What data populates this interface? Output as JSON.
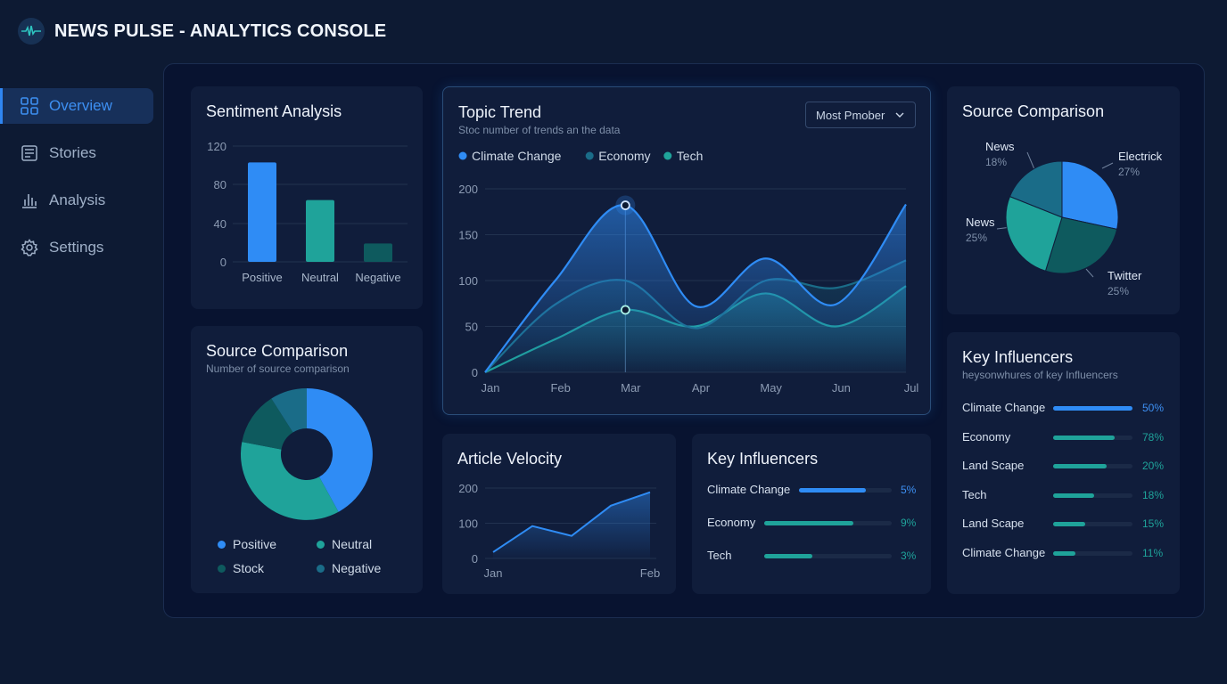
{
  "app": {
    "title": "NEWS PULSE - ANALYTICS CONSOLE",
    "logo_icon": "pulse-icon"
  },
  "nav": [
    {
      "label": "Overview",
      "icon": "grid-icon",
      "active": true
    },
    {
      "label": "Stories",
      "icon": "document-icon",
      "active": false
    },
    {
      "label": "Analysis",
      "icon": "bar-chart-icon",
      "active": false
    },
    {
      "label": "Settings",
      "icon": "gear-icon",
      "active": false
    }
  ],
  "colors": {
    "blue": "#2f8cf5",
    "teal": "#1fa39a",
    "dark_teal": "#0e5a5e",
    "slate_teal": "#1a6c88"
  },
  "sentiment": {
    "title": "Sentiment Analysis",
    "yticks": [
      "120",
      "80",
      "40",
      "0"
    ]
  },
  "source_donut": {
    "title": "Source Comparison",
    "subtitle": "Number of source comparison",
    "legend": [
      "Positive",
      "Neutral",
      "Stock",
      "Negative"
    ]
  },
  "topic": {
    "title": "Topic Trend",
    "subtitle": "Stoc number of trends an the data",
    "dropdown": "Most Pmober"
  },
  "velocity": {
    "title": "Article Velocity"
  },
  "influencers_mid": {
    "title": "Key Influencers",
    "rows": [
      {
        "label": "Climate Change",
        "value": "5%",
        "fill": 0.72,
        "color": "#2f8cf5",
        "text_color": "#3d8ff2"
      },
      {
        "label": "Economy",
        "value": "9%",
        "fill": 0.7,
        "color": "#1fa39a",
        "text_color": "#1fa39a"
      },
      {
        "label": "Tech",
        "value": "3%",
        "fill": 0.38,
        "color": "#1fa39a",
        "text_color": "#1fa39a"
      }
    ]
  },
  "source_pie": {
    "title": "Source Comparison",
    "labels": [
      {
        "name": "Electrick",
        "value": "27%"
      },
      {
        "name": "News",
        "value": "18%"
      },
      {
        "name": "News",
        "value": "25%"
      },
      {
        "name": "Twitter",
        "value": "25%"
      }
    ]
  },
  "influencers_right": {
    "title": "Key Influencers",
    "subtitle": "heysonwhures of key Influencers",
    "rows": [
      {
        "label": "Climate Change",
        "value": "50%",
        "fill": 1.0,
        "color": "#2f8cf5",
        "text_color": "#3d8ff2"
      },
      {
        "label": "Economy",
        "value": "78%",
        "fill": 0.78,
        "color": "#1fa39a",
        "text_color": "#1fa39a"
      },
      {
        "label": "Land Scape",
        "value": "20%",
        "fill": 0.67,
        "color": "#1fa39a",
        "text_color": "#1fa39a"
      },
      {
        "label": "Tech",
        "value": "18%",
        "fill": 0.52,
        "color": "#1fa39a",
        "text_color": "#1fa39a"
      },
      {
        "label": "Land Scape",
        "value": "15%",
        "fill": 0.4,
        "color": "#1fa39a",
        "text_color": "#1fa39a"
      },
      {
        "label": "Climate Change",
        "value": "11%",
        "fill": 0.28,
        "color": "#1fa39a",
        "text_color": "#1fa39a"
      }
    ]
  },
  "chart_data": [
    {
      "type": "bar",
      "title": "Sentiment Analysis",
      "categories": [
        "Positive",
        "Neutral",
        "Negative"
      ],
      "values": [
        103,
        64,
        19
      ],
      "ylim": [
        0,
        120
      ],
      "colors": [
        "#2f8cf5",
        "#1fa39a",
        "#0e5a5e"
      ],
      "grid": true
    },
    {
      "type": "pie",
      "title": "Source Comparison",
      "donut": true,
      "labels": [
        "Positive",
        "Neutral",
        "Stock",
        "Negative"
      ],
      "values": [
        42,
        36,
        13,
        9
      ],
      "colors": [
        "#2f8cf5",
        "#1fa39a",
        "#0e5a5e",
        "#1a6c88"
      ]
    },
    {
      "type": "area",
      "title": "Topic Trend",
      "x": [
        "Jan",
        "Feb",
        "Mar",
        "Apr",
        "May",
        "Jun",
        "Jul"
      ],
      "ylim": [
        0,
        200
      ],
      "yticks": [
        0,
        50,
        100,
        150,
        200
      ],
      "series": [
        {
          "name": "Climate Change",
          "color": "#2f8cf5",
          "values": [
            0,
            100,
            182,
            72,
            124,
            74,
            183
          ]
        },
        {
          "name": "Economy",
          "color": "#1a6c88",
          "values": [
            0,
            74,
            100,
            48,
            100,
            92,
            122
          ]
        },
        {
          "name": "Tech",
          "color": "#1fa39a",
          "values": [
            0,
            36,
            68,
            50,
            86,
            50,
            94
          ]
        }
      ],
      "highlight_x": "Mar",
      "legend_position": "top-left",
      "grid": true
    },
    {
      "type": "area",
      "title": "Article Velocity",
      "x_labels": [
        "Jan",
        "Feb"
      ],
      "yticks": [
        0,
        100,
        200
      ],
      "ylim": [
        0,
        200
      ],
      "values": [
        18,
        92,
        64,
        150,
        188
      ],
      "color": "#2f8cf5",
      "grid": true
    },
    {
      "type": "pie",
      "title": "Source Comparison",
      "labels": [
        "Electrick",
        "Twitter",
        "News",
        "News"
      ],
      "values": [
        27,
        25,
        25,
        18
      ],
      "colors": [
        "#2f8cf5",
        "#0e5a5e",
        "#1fa39a",
        "#1a6c88"
      ]
    }
  ]
}
